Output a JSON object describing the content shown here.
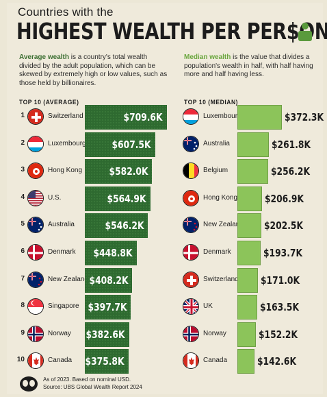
{
  "header": {
    "subtitle": "Countries with the",
    "title": "HIGHEST WEALTH PER PER$ON",
    "icon": "person-icon"
  },
  "descriptions": {
    "average_term": "Average wealth",
    "average_text": " is a country's total wealth divided by the adult population, which can be skewed by extremely high or low values, such as those held by billionaires.",
    "median_term": "Median wealth",
    "median_text": " is the value that divides a population's wealth in half, with half having more and half having less."
  },
  "sections": {
    "average_label": "TOP 10 (AVERAGE)",
    "median_label": "TOP 10 (MEDIAN)"
  },
  "colors": {
    "average_bar": "#2e6a30",
    "median_bar": "#8cc45a",
    "background": "#efeadb"
  },
  "chart_data": [
    {
      "type": "bar",
      "title": "TOP 10 (AVERAGE)",
      "orientation": "horizontal",
      "unit": "USD",
      "categories": [
        "Switzerland",
        "Luxembourg",
        "Hong Kong",
        "U.S.",
        "Australia",
        "Denmark",
        "New Zealand",
        "Singapore",
        "Norway",
        "Canada"
      ],
      "ranks": [
        "1",
        "2",
        "3",
        "4",
        "5",
        "6",
        "7",
        "8",
        "9",
        "10"
      ],
      "values": [
        709.6,
        607.5,
        582.0,
        564.9,
        546.2,
        448.8,
        408.2,
        397.7,
        382.6,
        375.8
      ],
      "labels": [
        "$709.6K",
        "$607.5K",
        "$582.0K",
        "$564.9K",
        "$546.2K",
        "$448.8K",
        "$408.2K",
        "$397.7K",
        "$382.6K",
        "$375.8K"
      ],
      "flags": [
        "switzerland-flag-icon",
        "luxembourg-flag-icon",
        "hong-kong-flag-icon",
        "us-flag-icon",
        "australia-flag-icon",
        "denmark-flag-icon",
        "new-zealand-flag-icon",
        "singapore-flag-icon",
        "norway-flag-icon",
        "canada-flag-icon"
      ]
    },
    {
      "type": "bar",
      "title": "TOP 10 (MEDIAN)",
      "orientation": "horizontal",
      "unit": "USD",
      "categories": [
        "Luxembourg",
        "Australia",
        "Belgium",
        "Hong Kong",
        "New Zealand",
        "Denmark",
        "Switzerland",
        "UK",
        "Norway",
        "Canada"
      ],
      "values": [
        372.3,
        261.8,
        256.2,
        206.9,
        202.5,
        193.7,
        171.0,
        163.5,
        152.2,
        142.6
      ],
      "labels": [
        "$372.3K",
        "$261.8K",
        "$256.2K",
        "$206.9K",
        "$202.5K",
        "$193.7K",
        "$171.0K",
        "$163.5K",
        "$152.2K",
        "$142.6K"
      ],
      "flags": [
        "luxembourg-flag-icon",
        "australia-flag-icon",
        "belgium-flag-icon",
        "hong-kong-flag-icon",
        "new-zealand-flag-icon",
        "denmark-flag-icon",
        "switzerland-flag-icon",
        "uk-flag-icon",
        "norway-flag-icon",
        "canada-flag-icon"
      ]
    }
  ],
  "footer": {
    "note": "As of 2023. Based on nominal USD.",
    "source": "Source: UBS Global Wealth Report 2024",
    "logo": "visual-capitalist-logo-icon"
  }
}
